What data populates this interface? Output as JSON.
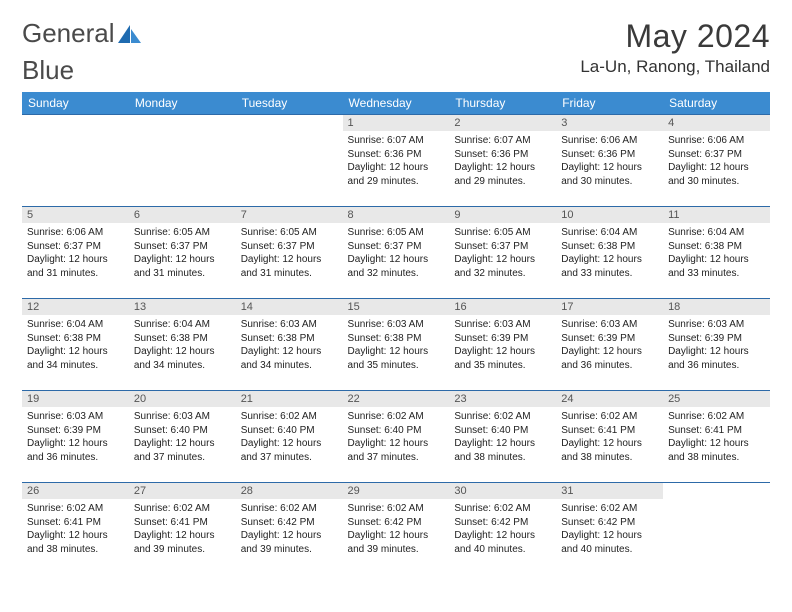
{
  "brand": {
    "word1": "General",
    "word2": "Blue"
  },
  "title": "May 2024",
  "location": "La-Un, Ranong, Thailand",
  "colors": {
    "header_bg": "#3b8bd0",
    "row_divider": "#2d6aa8",
    "daynum_bg": "#e8e8e8",
    "brand_logo": "#1f6bb0"
  },
  "dayHeaders": [
    "Sunday",
    "Monday",
    "Tuesday",
    "Wednesday",
    "Thursday",
    "Friday",
    "Saturday"
  ],
  "startOffset": 3,
  "days": [
    {
      "n": 1,
      "sunrise": "6:07 AM",
      "sunset": "6:36 PM",
      "daylight": "12 hours and 29 minutes."
    },
    {
      "n": 2,
      "sunrise": "6:07 AM",
      "sunset": "6:36 PM",
      "daylight": "12 hours and 29 minutes."
    },
    {
      "n": 3,
      "sunrise": "6:06 AM",
      "sunset": "6:36 PM",
      "daylight": "12 hours and 30 minutes."
    },
    {
      "n": 4,
      "sunrise": "6:06 AM",
      "sunset": "6:37 PM",
      "daylight": "12 hours and 30 minutes."
    },
    {
      "n": 5,
      "sunrise": "6:06 AM",
      "sunset": "6:37 PM",
      "daylight": "12 hours and 31 minutes."
    },
    {
      "n": 6,
      "sunrise": "6:05 AM",
      "sunset": "6:37 PM",
      "daylight": "12 hours and 31 minutes."
    },
    {
      "n": 7,
      "sunrise": "6:05 AM",
      "sunset": "6:37 PM",
      "daylight": "12 hours and 31 minutes."
    },
    {
      "n": 8,
      "sunrise": "6:05 AM",
      "sunset": "6:37 PM",
      "daylight": "12 hours and 32 minutes."
    },
    {
      "n": 9,
      "sunrise": "6:05 AM",
      "sunset": "6:37 PM",
      "daylight": "12 hours and 32 minutes."
    },
    {
      "n": 10,
      "sunrise": "6:04 AM",
      "sunset": "6:38 PM",
      "daylight": "12 hours and 33 minutes."
    },
    {
      "n": 11,
      "sunrise": "6:04 AM",
      "sunset": "6:38 PM",
      "daylight": "12 hours and 33 minutes."
    },
    {
      "n": 12,
      "sunrise": "6:04 AM",
      "sunset": "6:38 PM",
      "daylight": "12 hours and 34 minutes."
    },
    {
      "n": 13,
      "sunrise": "6:04 AM",
      "sunset": "6:38 PM",
      "daylight": "12 hours and 34 minutes."
    },
    {
      "n": 14,
      "sunrise": "6:03 AM",
      "sunset": "6:38 PM",
      "daylight": "12 hours and 34 minutes."
    },
    {
      "n": 15,
      "sunrise": "6:03 AM",
      "sunset": "6:38 PM",
      "daylight": "12 hours and 35 minutes."
    },
    {
      "n": 16,
      "sunrise": "6:03 AM",
      "sunset": "6:39 PM",
      "daylight": "12 hours and 35 minutes."
    },
    {
      "n": 17,
      "sunrise": "6:03 AM",
      "sunset": "6:39 PM",
      "daylight": "12 hours and 36 minutes."
    },
    {
      "n": 18,
      "sunrise": "6:03 AM",
      "sunset": "6:39 PM",
      "daylight": "12 hours and 36 minutes."
    },
    {
      "n": 19,
      "sunrise": "6:03 AM",
      "sunset": "6:39 PM",
      "daylight": "12 hours and 36 minutes."
    },
    {
      "n": 20,
      "sunrise": "6:03 AM",
      "sunset": "6:40 PM",
      "daylight": "12 hours and 37 minutes."
    },
    {
      "n": 21,
      "sunrise": "6:02 AM",
      "sunset": "6:40 PM",
      "daylight": "12 hours and 37 minutes."
    },
    {
      "n": 22,
      "sunrise": "6:02 AM",
      "sunset": "6:40 PM",
      "daylight": "12 hours and 37 minutes."
    },
    {
      "n": 23,
      "sunrise": "6:02 AM",
      "sunset": "6:40 PM",
      "daylight": "12 hours and 38 minutes."
    },
    {
      "n": 24,
      "sunrise": "6:02 AM",
      "sunset": "6:41 PM",
      "daylight": "12 hours and 38 minutes."
    },
    {
      "n": 25,
      "sunrise": "6:02 AM",
      "sunset": "6:41 PM",
      "daylight": "12 hours and 38 minutes."
    },
    {
      "n": 26,
      "sunrise": "6:02 AM",
      "sunset": "6:41 PM",
      "daylight": "12 hours and 38 minutes."
    },
    {
      "n": 27,
      "sunrise": "6:02 AM",
      "sunset": "6:41 PM",
      "daylight": "12 hours and 39 minutes."
    },
    {
      "n": 28,
      "sunrise": "6:02 AM",
      "sunset": "6:42 PM",
      "daylight": "12 hours and 39 minutes."
    },
    {
      "n": 29,
      "sunrise": "6:02 AM",
      "sunset": "6:42 PM",
      "daylight": "12 hours and 39 minutes."
    },
    {
      "n": 30,
      "sunrise": "6:02 AM",
      "sunset": "6:42 PM",
      "daylight": "12 hours and 40 minutes."
    },
    {
      "n": 31,
      "sunrise": "6:02 AM",
      "sunset": "6:42 PM",
      "daylight": "12 hours and 40 minutes."
    }
  ],
  "labels": {
    "sunrise": "Sunrise:",
    "sunset": "Sunset:",
    "daylight": "Daylight:"
  }
}
